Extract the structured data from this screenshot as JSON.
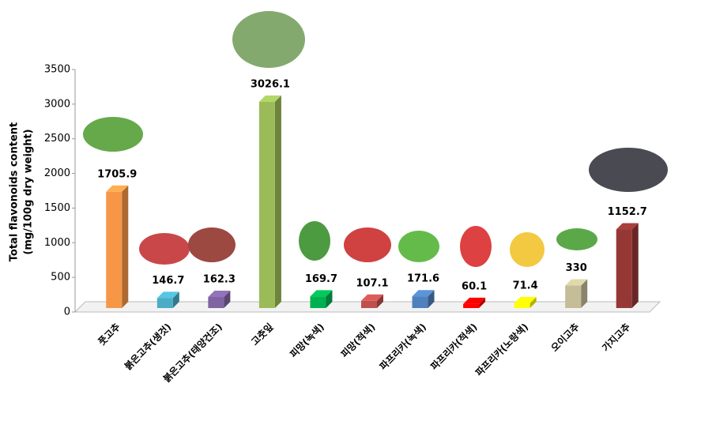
{
  "chart_data": {
    "type": "bar3d",
    "y_label": "Total flavonoids content",
    "y_label_unit": "(mg/100g dry weight)",
    "categories": [
      "풋고추",
      "붉은고추(생것)",
      "붉은고추(태양건조)",
      "고춧잎",
      "피망(녹색)",
      "피망(적색)",
      "파프리카(녹색)",
      "파프리카(적색)",
      "파프리카(노랑색)",
      "오이고추",
      "가지고추"
    ],
    "values": [
      1705.9,
      146.7,
      162.3,
      3026.1,
      169.7,
      107.1,
      171.6,
      60.1,
      71.4,
      330,
      1152.7
    ],
    "colors": [
      "#f79646",
      "#4bacc6",
      "#8064a2",
      "#9bbb59",
      "#00b050",
      "#c0504d",
      "#4f81bd",
      "#ff0000",
      "#ffff00",
      "#c4bd97",
      "#953735"
    ],
    "ylim": [
      0,
      3500
    ],
    "yticks": [
      0,
      500,
      1000,
      1500,
      2000,
      2500,
      3000,
      3500
    ]
  }
}
